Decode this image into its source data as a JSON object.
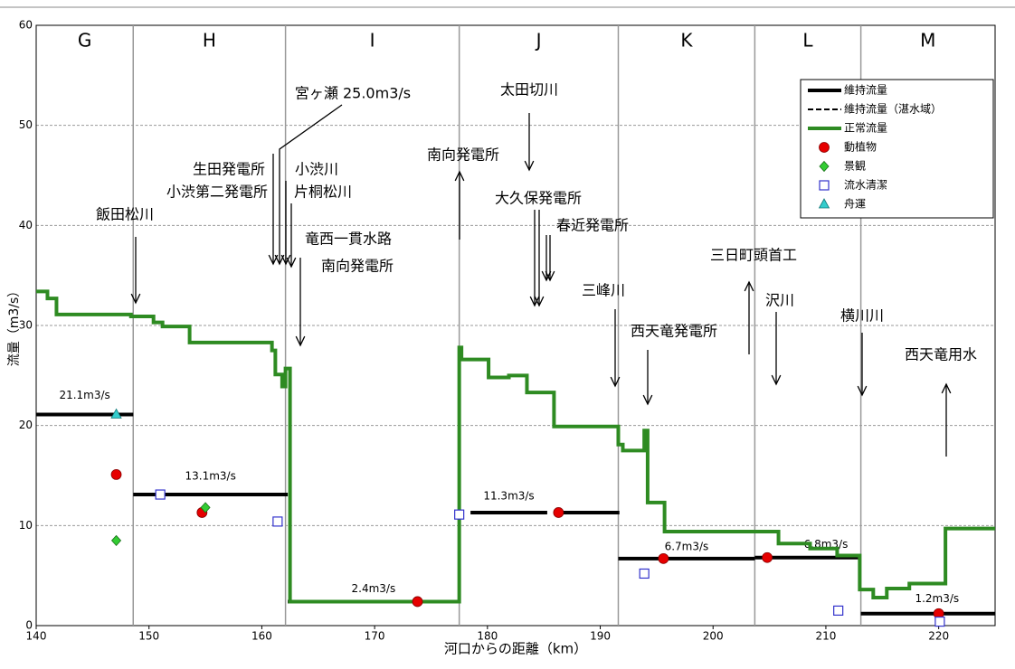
{
  "chart_data": {
    "type": "line",
    "x_label": "河口からの距離（km）",
    "y_label": "流量（m3/s）",
    "xlim": [
      140,
      225
    ],
    "xticks": [
      140,
      150,
      160,
      170,
      180,
      190,
      200,
      210,
      220
    ],
    "ylim": [
      0,
      60
    ],
    "yticks": [
      0,
      10,
      20,
      30,
      40,
      50,
      60
    ],
    "grid": true,
    "legend": "upper right",
    "sections": {
      "labels": [
        "G",
        "H",
        "I",
        "J",
        "K",
        "L",
        "M"
      ],
      "boundaries": [
        148.6,
        162.1,
        177.5,
        191.6,
        203.7,
        213.1
      ]
    },
    "series": [
      {
        "name": "維持流量",
        "color": "#000000",
        "style": "solid",
        "segments": [
          {
            "x": [
              140,
              148.6
            ],
            "value": 21.1,
            "value_label": "21.1m3/s"
          },
          {
            "x": [
              148.6,
              162.3
            ],
            "value": 13.1,
            "value_label": "13.1m3/s"
          },
          {
            "x": [
              162.3,
              177.5
            ],
            "value": 2.4,
            "value_label": "2.4m3/s"
          },
          {
            "x": [
              178.5,
              185.3
            ],
            "value": 11.3,
            "value_label": "11.3m3/s"
          },
          {
            "x": [
              185.9,
              191.7
            ],
            "value": 11.3
          },
          {
            "x": [
              191.6,
              203.7
            ],
            "value": 6.7,
            "value_label": "6.7m3/s"
          },
          {
            "x": [
              203.7,
              213.1
            ],
            "value": 6.8,
            "value_label": "6.8m3/s"
          },
          {
            "x": [
              213.1,
              225
            ],
            "value": 1.2,
            "value_label": "1.2m3/s"
          }
        ]
      },
      {
        "name": "維持流量（湛水域）",
        "color": "#000000",
        "style": "dashed",
        "segments": []
      },
      {
        "name": "正常流量",
        "color": "#2e8b22",
        "style": "line",
        "x": [
          140,
          141.0,
          141.0,
          141.8,
          141.8,
          148.4,
          148.4,
          150.4,
          150.4,
          151.2,
          151.2,
          153.6,
          153.6,
          160.9,
          160.9,
          161.2,
          161.2,
          161.8,
          161.8,
          162.1,
          162.1,
          162.5,
          162.5,
          177.5,
          177.5,
          177.7,
          177.7,
          180.1,
          180.1,
          181.9,
          181.9,
          183.5,
          183.5,
          185.9,
          185.9,
          191.6,
          191.6,
          192.0,
          192.0,
          193.9,
          193.9,
          194.2,
          194.2,
          195.7,
          195.7,
          205.8,
          205.8,
          208.6,
          208.6,
          211.0,
          211.0,
          213.0,
          213.0,
          214.2,
          214.2,
          215.4,
          215.4,
          217.4,
          217.4,
          220.6,
          220.6,
          225
        ],
        "values": [
          33.4,
          33.4,
          32.7,
          32.7,
          31.1,
          31.1,
          30.9,
          30.9,
          30.3,
          30.3,
          29.9,
          29.9,
          28.3,
          28.3,
          27.5,
          27.5,
          25.1,
          25.1,
          23.9,
          23.9,
          25.7,
          25.7,
          2.4,
          2.4,
          27.8,
          27.8,
          26.6,
          26.6,
          24.8,
          24.8,
          25.0,
          25.0,
          23.3,
          23.3,
          19.9,
          19.9,
          18.1,
          18.1,
          17.5,
          17.5,
          19.5,
          19.5,
          12.3,
          12.3,
          9.4,
          9.4,
          8.2,
          8.2,
          7.7,
          7.7,
          7.0,
          7.0,
          3.6,
          3.6,
          2.8,
          2.8,
          3.7,
          3.7,
          4.2,
          4.2,
          9.7,
          9.7
        ]
      },
      {
        "name": "動植物",
        "color": "#e60000",
        "style": "circle",
        "x": [
          147.1,
          154.7,
          173.8,
          186.3,
          195.6,
          204.8,
          220.0
        ],
        "values": [
          15.1,
          11.3,
          2.4,
          11.3,
          6.7,
          6.8,
          1.2
        ]
      },
      {
        "name": "景観",
        "color": "#33cc33",
        "style": "diamond",
        "x": [
          147.1,
          155.0
        ],
        "values": [
          8.5,
          11.8
        ]
      },
      {
        "name": "流水清潔",
        "color": "#3333cc",
        "style": "square",
        "x": [
          151.0,
          161.4,
          177.5,
          193.9,
          211.1,
          220.1
        ],
        "values": [
          13.1,
          10.4,
          11.1,
          5.2,
          1.5,
          0.4
        ]
      },
      {
        "name": "舟運",
        "color": "#33cccc",
        "style": "triangle",
        "x": [
          147.1
        ],
        "values": [
          21.1
        ]
      }
    ],
    "annotations": [
      "宮ヶ瀬 25.0m3/s",
      "生田発電所",
      "小渋第二発電所",
      "小渋川",
      "片桐松川",
      "竜西一貫水路",
      "南向発電所",
      "飯田松川",
      "南向発電所",
      "太田切川",
      "大久保発電所",
      "春近発電所",
      "三峰川",
      "西天竜発電所",
      "三日町頭首工",
      "沢川",
      "横川川",
      "西天竜用水"
    ]
  }
}
